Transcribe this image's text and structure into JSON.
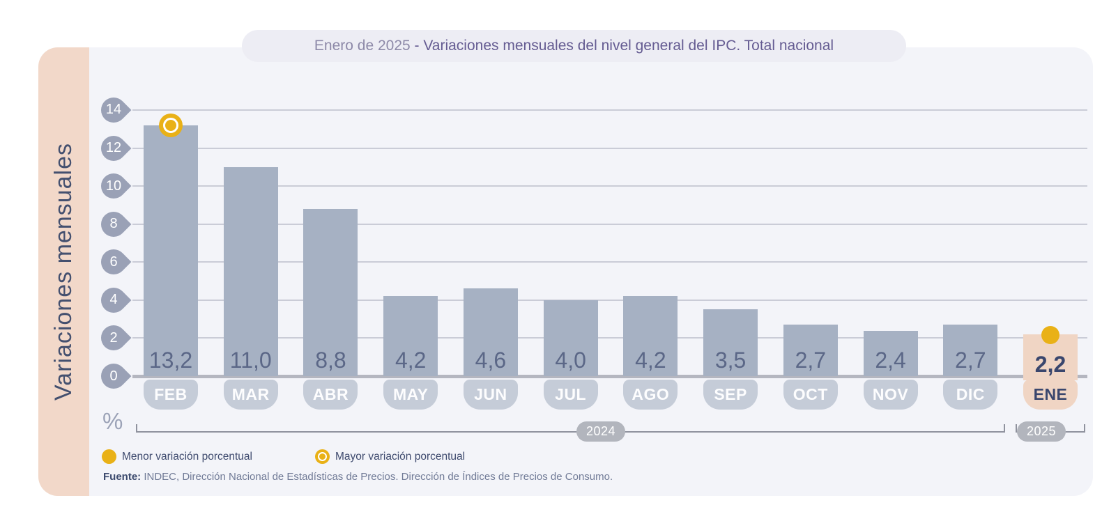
{
  "header": {
    "title_period": "Enero de 2025 ",
    "title_rest": "- Variaciones mensuales del nivel general del IPC. Total nacional"
  },
  "y_axis": {
    "label": "Variaciones mensuales",
    "unit_symbol": "%",
    "tick_labels": [
      "14",
      "12",
      "10",
      "8",
      "6",
      "4",
      "2",
      "0"
    ]
  },
  "chart_data": {
    "type": "bar",
    "title": "Enero de 2025 - Variaciones mensuales del nivel general del IPC. Total nacional",
    "ylabel": "Variaciones mensuales",
    "y_unit": "%",
    "ylim": [
      0,
      14
    ],
    "yticks": [
      0,
      2,
      4,
      6,
      8,
      10,
      12,
      14
    ],
    "grid": "horizontal",
    "legend_position": "bottom-left",
    "categories": [
      "FEB",
      "MAR",
      "ABR",
      "MAY",
      "JUN",
      "JUL",
      "AGO",
      "SEP",
      "OCT",
      "NOV",
      "DIC",
      "ENE"
    ],
    "values": [
      13.2,
      11.0,
      8.8,
      4.2,
      4.6,
      4.0,
      4.2,
      3.5,
      2.7,
      2.4,
      2.7,
      2.2
    ],
    "value_labels": [
      "13,2",
      "11,0",
      "8,8",
      "4,2",
      "4,6",
      "4,0",
      "4,2",
      "3,5",
      "2,7",
      "2,4",
      "2,7",
      "2,2"
    ],
    "year_groups": [
      {
        "label": "2024",
        "start_index": 0,
        "end_index": 10
      },
      {
        "label": "2025",
        "start_index": 11,
        "end_index": 11
      }
    ],
    "max_marker_index": 0,
    "min_marker_index": 11,
    "highlight_index": 11
  },
  "legend": {
    "items": [
      {
        "marker": "solid-dot-icon",
        "label": "Menor variación porcentual"
      },
      {
        "marker": "ring-icon",
        "label": "Mayor variación porcentual"
      }
    ]
  },
  "source": {
    "label": "Fuente:",
    "text": " INDEC, Dirección Nacional de Estadísticas de Precios. Dirección de Índices de Precios de Consumo."
  },
  "colors": {
    "accent_yellow": "#E9B117",
    "bar_gray": "#A6B1C3",
    "bar_highlight_peach": "#F0D5C4",
    "sidebar_peach": "#F2D8C9",
    "panel_bg": "#F3F4F9",
    "title_pill_bg": "#EDEDF4",
    "axis_pin": "#9AA1B6",
    "month_pill": "#C5CCD8",
    "value_text": "#5B6787",
    "dark_navy": "#3E4A6E",
    "year_pill": "#B2B5BD"
  }
}
